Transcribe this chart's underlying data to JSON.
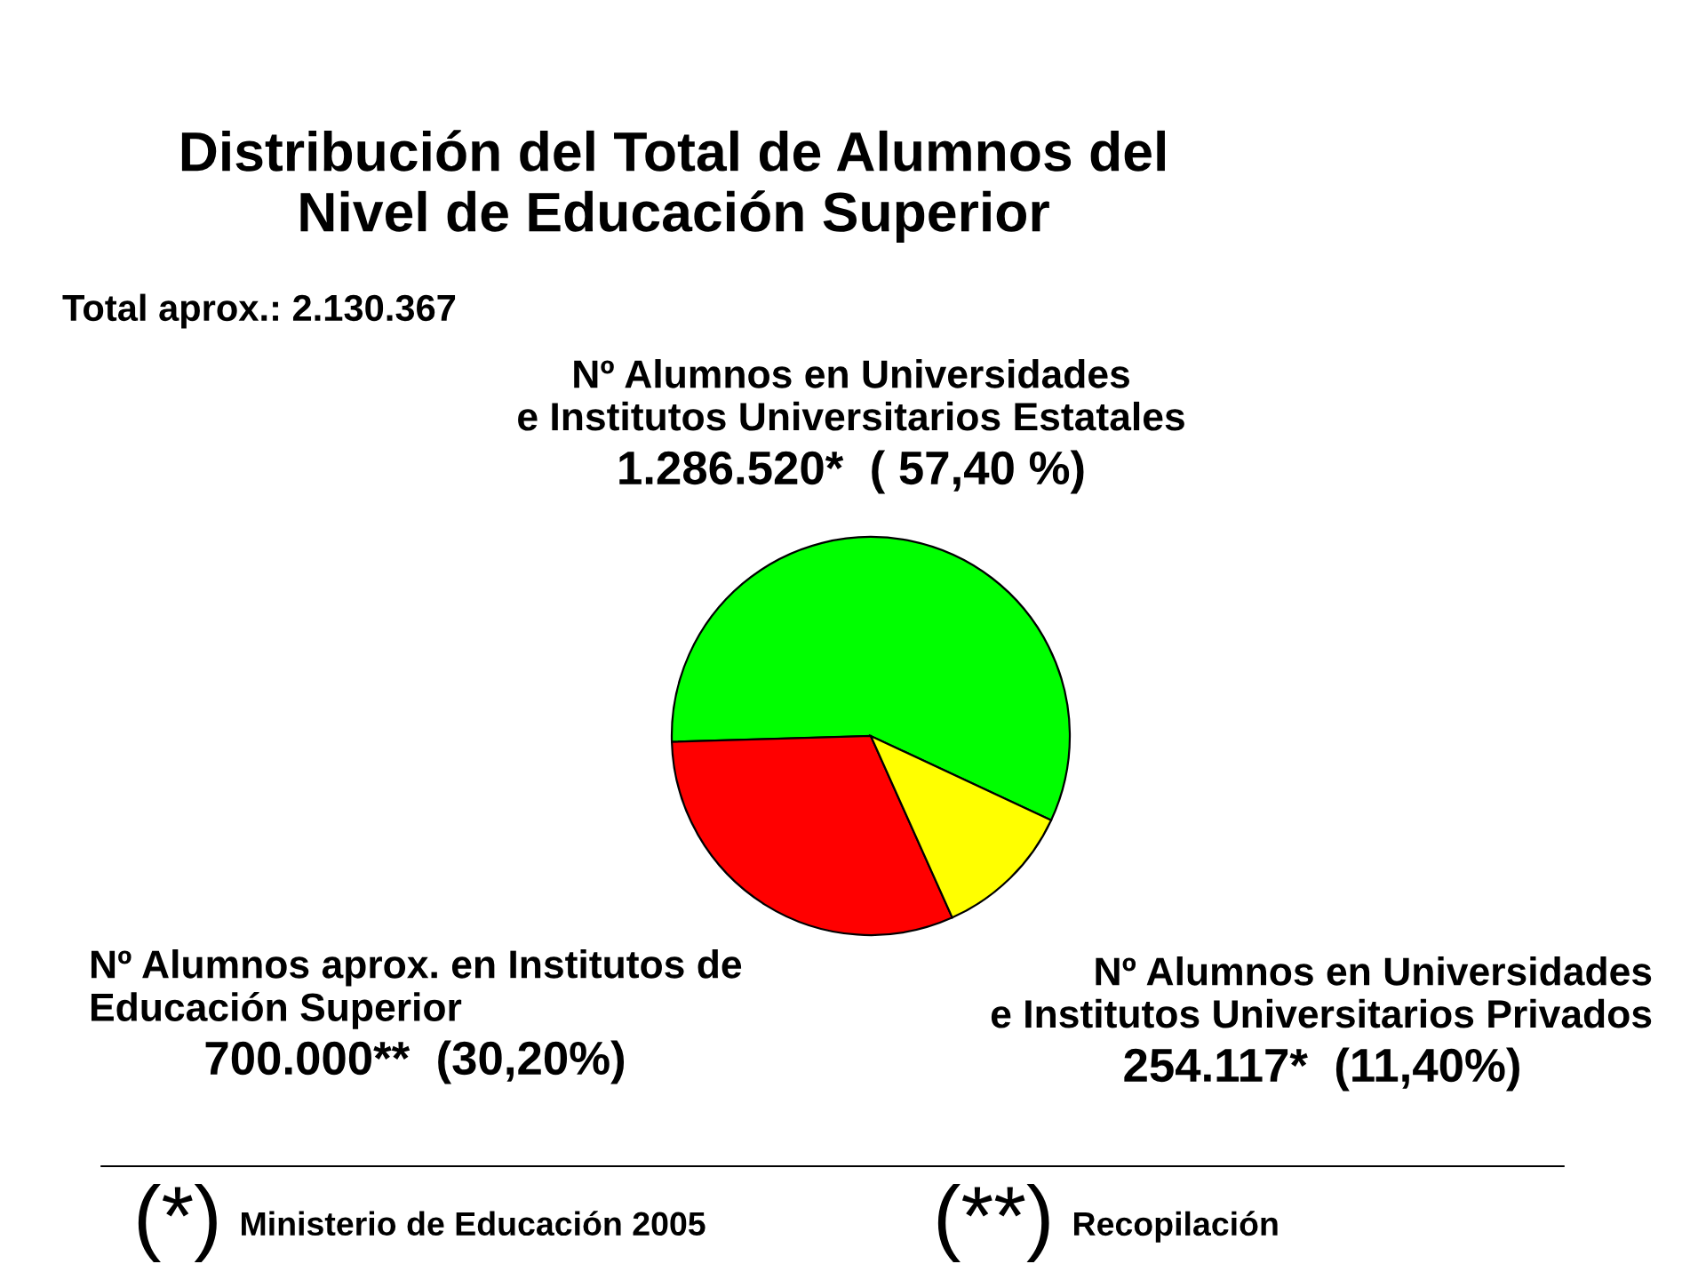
{
  "chart_data": {
    "type": "pie",
    "title": "Distribución del Total de Alumnos del\nNivel de Educación Superior",
    "subtitle": "Total aprox.: 2.130.367",
    "categories": [
      "Nº Alumnos en Universidades\ne Institutos Universitarios Estatales",
      "Nº Alumnos aprox. en Institutos de\nEducación Superior",
      "Nº Alumnos en Universidades\ne Institutos Universitarios Privados"
    ],
    "values": [
      1286520,
      700000,
      254117
    ],
    "colors": [
      "#00ff00",
      "#ff0000",
      "#ffff00"
    ],
    "value_labels": [
      "1.286.520*  ( 57,40 %)",
      "700.000**  (30,20%)",
      "254.117*  (11,40%)"
    ],
    "annotations": [
      "(*) Ministerio de Educación 2005",
      "(**) Recopilación"
    ]
  }
}
